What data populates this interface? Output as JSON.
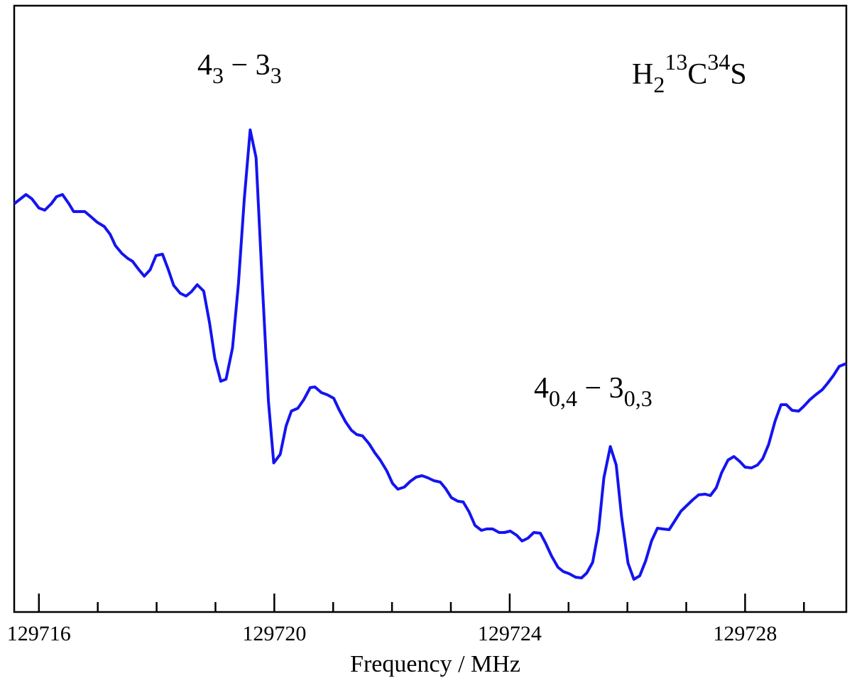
{
  "chart_data": {
    "type": "line",
    "xlabel": "Frequency / MHz",
    "xlim": [
      129715.58,
      129729.72
    ],
    "ylim": [
      0,
      854
    ],
    "xticks": [
      129716,
      129720,
      129724,
      129728
    ],
    "xminor_ticks": [
      129717,
      129718,
      129719,
      129721,
      129722,
      129723,
      129725,
      129726,
      129727,
      129729
    ],
    "color": "#1414f0",
    "x": [
      129715.58,
      129715.78,
      129715.88,
      129716.0,
      129716.1,
      129716.21,
      129716.3,
      129716.4,
      129716.51,
      129716.59,
      129716.78,
      129716.88,
      129716.99,
      129717.11,
      129717.21,
      129717.3,
      129717.41,
      129717.51,
      129717.59,
      129717.7,
      129717.79,
      129717.89,
      129717.99,
      129718.1,
      129718.2,
      129718.29,
      129718.4,
      129718.5,
      129718.59,
      129718.69,
      129718.8,
      129718.9,
      129718.99,
      129719.09,
      129719.18,
      129719.29,
      129719.39,
      129719.49,
      129719.59,
      129719.69,
      129719.79,
      129719.9,
      129719.99,
      129720.1,
      129720.2,
      129720.29,
      129720.4,
      129720.5,
      129720.61,
      129720.69,
      129720.8,
      129720.9,
      129721.01,
      129721.1,
      129721.21,
      129721.31,
      129721.4,
      129721.5,
      129721.61,
      129721.71,
      129721.8,
      129721.91,
      129722.01,
      129722.1,
      129722.21,
      129722.31,
      129722.41,
      129722.51,
      129722.61,
      129722.71,
      129722.82,
      129722.91,
      129723.01,
      129723.12,
      129723.21,
      129723.31,
      129723.41,
      129723.52,
      129723.61,
      129723.71,
      129723.82,
      129723.91,
      129724.01,
      129724.12,
      129724.21,
      129724.31,
      129724.41,
      129724.52,
      129724.61,
      129724.71,
      129724.82,
      129724.91,
      129725.01,
      129725.12,
      129725.22,
      129725.31,
      129725.41,
      129725.51,
      129725.6,
      129725.71,
      129725.81,
      129725.9,
      129726.01,
      129726.11,
      129726.21,
      129726.31,
      129726.41,
      129726.51,
      129726.6,
      129726.71,
      129726.81,
      129726.91,
      129727.01,
      129727.11,
      129727.21,
      129727.32,
      129727.41,
      129727.51,
      129727.6,
      129727.71,
      129727.81,
      129727.91,
      129728.0,
      129728.11,
      129728.21,
      129728.3,
      129728.4,
      129728.51,
      129728.61,
      129728.7,
      129728.8,
      129728.91,
      129729.0,
      129729.1,
      129729.2,
      129729.31,
      129729.4,
      129729.5,
      129729.6,
      129729.72
    ],
    "values": [
      575,
      588,
      582,
      569,
      566,
      575,
      585,
      588,
      575,
      564,
      564,
      557,
      549,
      543,
      532,
      516,
      505,
      498,
      494,
      482,
      473,
      482,
      502,
      504,
      482,
      460,
      449,
      445,
      451,
      461,
      452,
      407,
      357,
      325,
      328,
      372,
      462,
      582,
      679,
      640,
      472,
      297,
      210,
      222,
      262,
      283,
      287,
      299,
      316,
      317,
      309,
      306,
      301,
      285,
      268,
      256,
      250,
      248,
      237,
      224,
      214,
      199,
      181,
      173,
      176,
      184,
      190,
      192,
      189,
      185,
      183,
      174,
      161,
      156,
      155,
      141,
      122,
      115,
      117,
      117,
      112,
      112,
      114,
      108,
      100,
      104,
      112,
      111,
      97,
      79,
      63,
      57,
      54,
      49,
      48,
      55,
      70,
      115,
      189,
      233,
      207,
      135,
      69,
      46,
      51,
      72,
      100,
      118,
      117,
      116,
      129,
      142,
      150,
      158,
      165,
      166,
      164,
      175,
      196,
      214,
      219,
      212,
      204,
      203,
      207,
      216,
      236,
      269,
      292,
      292,
      284,
      283,
      290,
      299,
      306,
      313,
      322,
      333,
      346,
      350
    ],
    "annotations": [
      {
        "parts": [
          {
            "text": "4"
          },
          {
            "sub": "3"
          },
          {
            "text": " − 3"
          },
          {
            "sub": "3"
          }
        ]
      },
      {
        "parts": [
          {
            "text": "4"
          },
          {
            "sub": "0,4"
          },
          {
            "text": " − 3"
          },
          {
            "sub": "0,3"
          }
        ]
      },
      {
        "parts": [
          {
            "text": "H"
          },
          {
            "sub": "2"
          },
          {
            "sup": "13"
          },
          {
            "text": "C"
          },
          {
            "sup": "34"
          },
          {
            "text": "S"
          }
        ]
      }
    ]
  }
}
